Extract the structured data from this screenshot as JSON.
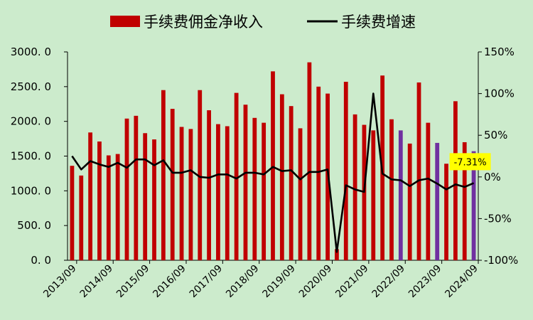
{
  "chart_data": {
    "type": "bar+line",
    "legend": {
      "bar_label": "手续费佣金净收入",
      "line_label": "手续费增速",
      "placement": "top"
    },
    "colors": {
      "bar": "#c00000",
      "bar_highlight": "#7030a0",
      "line": "#000000",
      "callout_bg": "#ffff00"
    },
    "x_tick_labels": [
      "2013/09",
      "2014/09",
      "2015/09",
      "2016/09",
      "2017/09",
      "2018/09",
      "2019/09",
      "2020/09",
      "2021/09",
      "2022/09",
      "2023/09",
      "2024/09"
    ],
    "y_left": {
      "min": 0,
      "max": 3000,
      "step": 500,
      "tick_labels": [
        "0. 0",
        "500. 0",
        "1000. 0",
        "1500. 0",
        "2000. 0",
        "2500. 0",
        "3000. 0"
      ]
    },
    "y_right": {
      "min": -100,
      "max": 150,
      "step": 50,
      "tick_labels": [
        "-100%",
        "-50%",
        "0%",
        "50%",
        "100%",
        "150%"
      ]
    },
    "series": [
      {
        "name": "手续费佣金净收入",
        "kind": "bar",
        "axis": "left",
        "values": [
          1360,
          1220,
          1840,
          1710,
          1510,
          1530,
          2040,
          2080,
          1830,
          1740,
          2450,
          2180,
          1920,
          1890,
          2450,
          2160,
          1960,
          1930,
          2410,
          2240,
          2050,
          1980,
          2720,
          2390,
          2220,
          1900,
          2850,
          2500,
          2400,
          160,
          2570,
          2100,
          1950,
          1870,
          2660,
          2030,
          1870,
          1680,
          2560,
          1980,
          1690,
          1390,
          2290,
          1700,
          1570
        ],
        "highlight_indices": [
          36,
          40,
          44
        ]
      },
      {
        "name": "手续费增速",
        "kind": "line",
        "axis": "right",
        "unit": "%",
        "values": [
          25,
          9,
          19,
          15,
          12,
          17,
          11,
          21,
          21,
          14,
          20,
          5,
          5,
          8,
          0,
          -1,
          3,
          3,
          -2,
          5,
          5,
          3,
          12,
          7,
          8,
          -3,
          6,
          6,
          9,
          -90,
          -10,
          -15,
          -18,
          100,
          4,
          -3,
          -4,
          -11,
          -4,
          -2,
          -8,
          -15,
          -9,
          -12,
          -7.31
        ]
      }
    ],
    "annotation": {
      "text": "-7.31%",
      "series": "手续费增速",
      "index": 44
    }
  }
}
